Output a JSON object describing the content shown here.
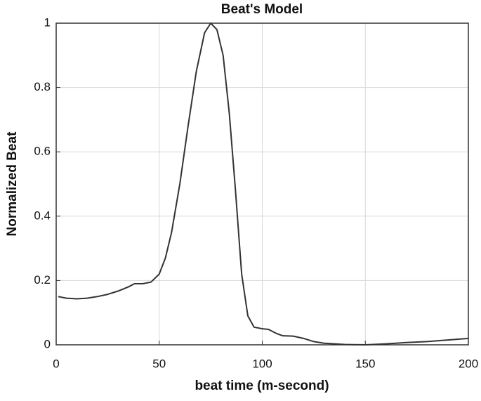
{
  "chart_data": {
    "type": "line",
    "title": "Beat's Model",
    "xlabel": "beat time (m-second)",
    "ylabel": "Normalized Beat",
    "x": [
      1,
      5,
      10,
      15,
      20,
      25,
      30,
      35,
      38,
      42,
      46,
      50,
      53,
      56,
      60,
      64,
      68,
      72,
      75,
      78,
      81,
      84,
      87,
      90,
      93,
      96,
      100,
      103,
      107,
      110,
      115,
      120,
      125,
      130,
      140,
      150,
      160,
      170,
      180,
      190,
      200
    ],
    "series": [
      {
        "name": "Beat",
        "color": "#333333",
        "values": [
          0.15,
          0.145,
          0.143,
          0.145,
          0.15,
          0.157,
          0.167,
          0.18,
          0.19,
          0.19,
          0.195,
          0.22,
          0.27,
          0.35,
          0.5,
          0.68,
          0.85,
          0.97,
          1.0,
          0.98,
          0.9,
          0.72,
          0.48,
          0.22,
          0.09,
          0.055,
          0.05,
          0.048,
          0.035,
          0.028,
          0.027,
          0.02,
          0.01,
          0.005,
          0.001,
          0.0,
          0.003,
          0.007,
          0.01,
          0.015,
          0.02
        ]
      }
    ],
    "xlim": [
      0,
      200
    ],
    "xticks": [
      0,
      50,
      100,
      150,
      200
    ],
    "ylim": [
      0,
      1
    ],
    "yticks": [
      0,
      0.2,
      0.4,
      0.6,
      0.8,
      1
    ],
    "grid": true
  }
}
